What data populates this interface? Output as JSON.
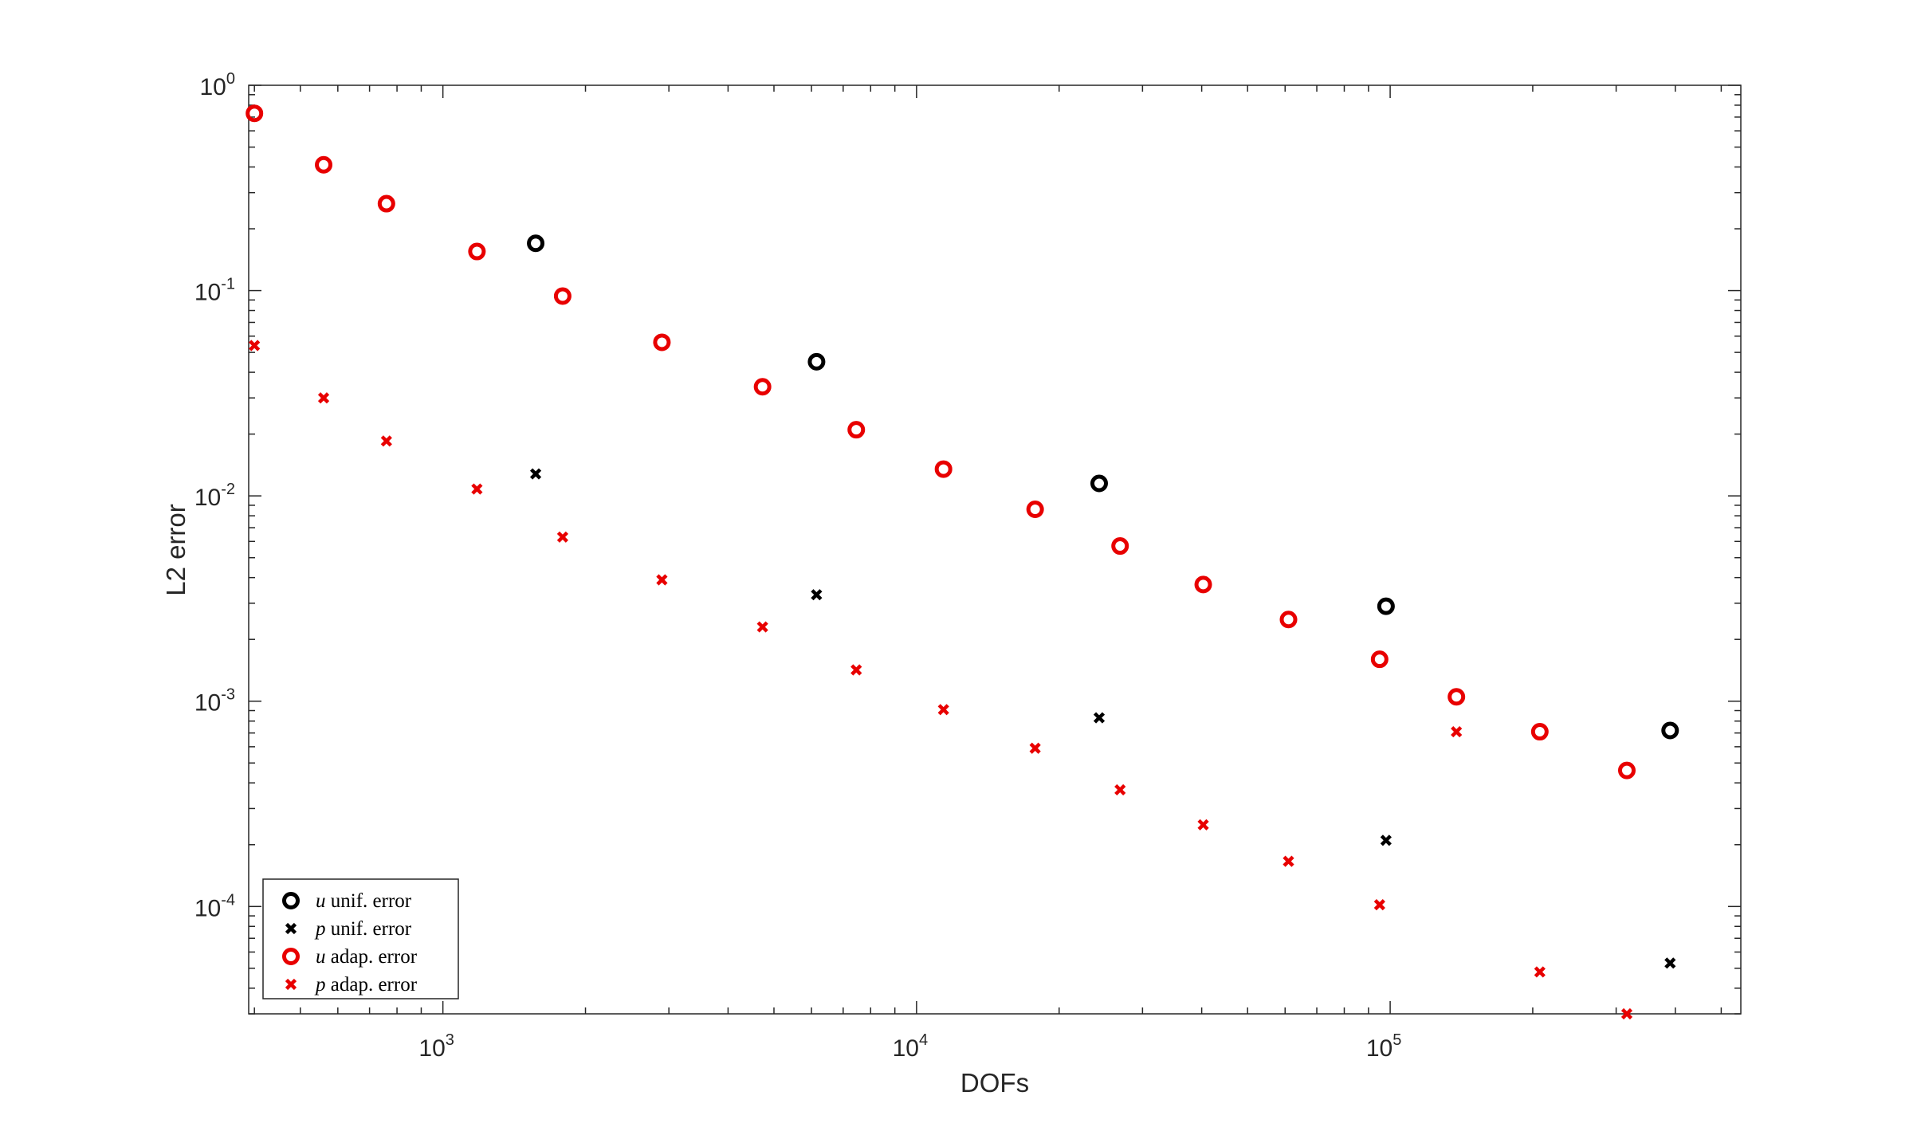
{
  "chart_data": {
    "type": "scatter",
    "xlabel": "DOFs",
    "ylabel": "L2 error",
    "xscale": "log",
    "yscale": "log",
    "xlim": [
      389,
      550000
    ],
    "ylim": [
      3e-05,
      1
    ],
    "x_ticks": [
      {
        "base": "10",
        "exp": "3",
        "value": 1000
      },
      {
        "base": "10",
        "exp": "4",
        "value": 10000
      },
      {
        "base": "10",
        "exp": "5",
        "value": 100000
      }
    ],
    "y_ticks": [
      {
        "base": "10",
        "exp": "0",
        "value": 1
      },
      {
        "base": "10",
        "exp": "-1",
        "value": 0.1
      },
      {
        "base": "10",
        "exp": "-2",
        "value": 0.01
      },
      {
        "base": "10",
        "exp": "-3",
        "value": 0.001
      },
      {
        "base": "10",
        "exp": "-4",
        "value": 0.0001
      }
    ],
    "grid": false,
    "legend_position": "bottom-left",
    "series": [
      {
        "name_var": "u",
        "name_rest": " unif. error",
        "marker": "circle",
        "color": "#000000",
        "x": [
          1570,
          6150,
          24300,
          98000,
          390000
        ],
        "y": [
          0.17,
          0.045,
          0.0115,
          0.0029,
          0.00072
        ]
      },
      {
        "name_var": "p",
        "name_rest": " unif. error",
        "marker": "x",
        "color": "#000000",
        "x": [
          1570,
          6150,
          24300,
          98000,
          390000
        ],
        "y": [
          0.0128,
          0.0033,
          0.00083,
          0.00021,
          5.3e-05
        ]
      },
      {
        "name_var": "u",
        "name_rest": " adap. error",
        "marker": "circle",
        "color": "#e80000",
        "x": [
          400,
          560,
          760,
          1180,
          1790,
          2900,
          4730,
          7460,
          11400,
          17800,
          26900,
          40300,
          61000,
          95000,
          138000,
          207000,
          316000
        ],
        "y": [
          0.73,
          0.41,
          0.265,
          0.155,
          0.094,
          0.056,
          0.034,
          0.021,
          0.0135,
          0.0086,
          0.0057,
          0.0037,
          0.0025,
          0.0016,
          0.00105,
          0.00071,
          0.00046
        ]
      },
      {
        "name_var": "p",
        "name_rest": " adap. error",
        "marker": "x",
        "color": "#e80000",
        "x": [
          400,
          560,
          760,
          1180,
          1790,
          2900,
          4730,
          7460,
          11400,
          17800,
          26900,
          40300,
          61000,
          95000,
          138000,
          207000,
          316000
        ],
        "y": [
          0.054,
          0.03,
          0.0185,
          0.0108,
          0.0063,
          0.0039,
          0.0023,
          0.00142,
          0.00091,
          0.00059,
          0.00037,
          0.00025,
          0.000166,
          0.000102,
          0.00071,
          4.8e-05,
          3e-05
        ]
      }
    ]
  }
}
